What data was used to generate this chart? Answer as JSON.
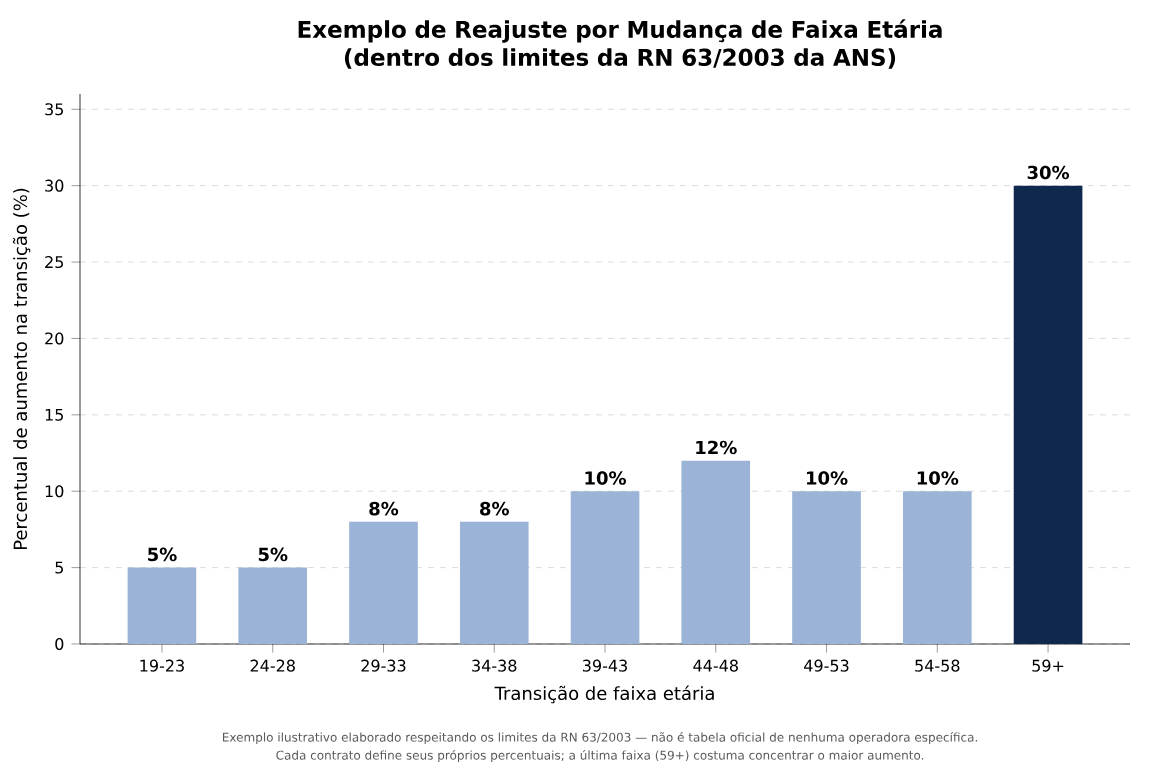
{
  "chart_data": {
    "type": "bar",
    "title": "Exemplo de Reajuste por Mudança de Faixa Etária\n(dentro dos limites da RN 63/2003 da ANS)",
    "xlabel": "Transição de faixa etária",
    "ylabel": "Percentual de aumento na transição (%)",
    "categories": [
      "19-23",
      "24-28",
      "29-33",
      "34-38",
      "39-43",
      "44-48",
      "49-53",
      "54-58",
      "59+"
    ],
    "values": [
      5,
      5,
      8,
      8,
      10,
      12,
      10,
      10,
      30
    ],
    "colors": [
      "#9ab3d6",
      "#9ab3d6",
      "#9ab3d6",
      "#9ab3d6",
      "#9ab3d6",
      "#9ab3d6",
      "#9ab3d6",
      "#9ab3d6",
      "#10284d"
    ],
    "value_labels": [
      "5%",
      "5%",
      "8%",
      "8%",
      "10%",
      "12%",
      "10%",
      "10%",
      "30%"
    ],
    "ylim": [
      0,
      36
    ],
    "yticks": [
      0,
      5,
      10,
      15,
      20,
      25,
      30,
      35
    ],
    "grid": "y",
    "annotations": [
      "Exemplo ilustrativo elaborado respeitando os limites da RN 63/2003 — não é tabela oficial de nenhuma operadora específica.",
      "Cada contrato define seus próprios percentuais; a última faixa (59+) costuma concentrar o maior aumento."
    ]
  }
}
